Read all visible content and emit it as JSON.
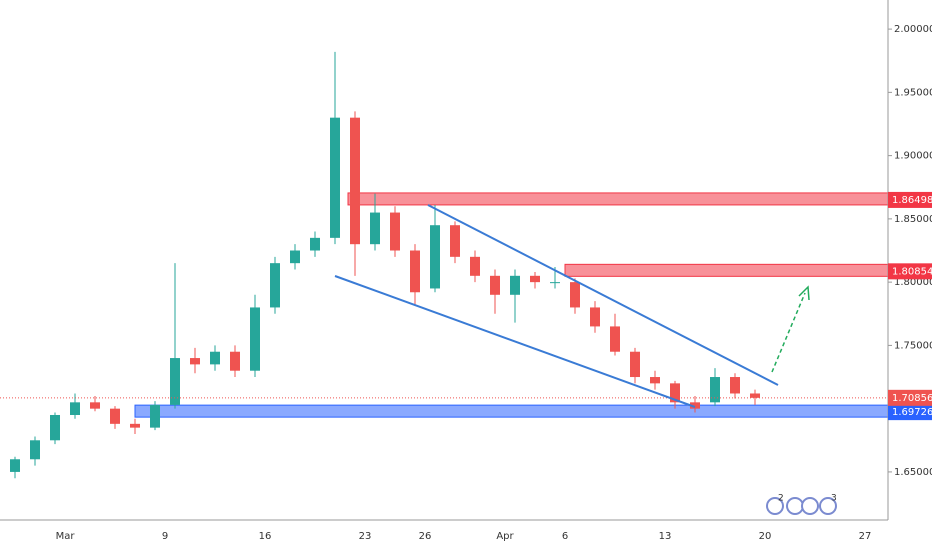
{
  "chart_data": {
    "type": "candlestick",
    "categories": [
      null,
      null,
      null,
      "Mar",
      null,
      null,
      null,
      null,
      "9",
      null,
      null,
      null,
      null,
      "16",
      null,
      null,
      null,
      null,
      "23",
      null,
      null,
      "26",
      null,
      null,
      null,
      "Apr",
      null,
      null,
      "6",
      null,
      null,
      null,
      null,
      "13",
      null,
      null,
      null,
      null,
      "20",
      null,
      null,
      null,
      null,
      "27"
    ],
    "open": [
      1.65,
      1.66,
      1.675,
      1.695,
      1.705,
      1.7,
      1.688,
      1.685,
      1.703,
      1.74,
      1.735,
      1.745,
      1.73,
      1.78,
      1.815,
      1.825,
      1.835,
      1.93,
      1.83,
      1.855,
      1.825,
      1.795,
      1.845,
      1.82,
      1.805,
      1.79,
      1.805,
      1.8,
      1.8,
      1.78,
      1.765,
      1.745,
      1.725,
      1.72,
      1.705,
      1.705,
      1.725,
      1.712,
      null,
      null,
      null,
      null,
      null,
      null
    ],
    "high": [
      1.662,
      1.678,
      1.697,
      1.712,
      1.71,
      1.702,
      1.692,
      1.706,
      1.815,
      1.748,
      1.75,
      1.75,
      1.79,
      1.82,
      1.83,
      1.84,
      1.982,
      1.935,
      1.87,
      1.86,
      1.83,
      1.861,
      1.848,
      1.825,
      1.81,
      1.81,
      1.808,
      1.812,
      1.803,
      1.785,
      1.775,
      1.748,
      1.73,
      1.722,
      1.71,
      1.732,
      1.728,
      1.715,
      null,
      null,
      null,
      null,
      null,
      null
    ],
    "low": [
      1.645,
      1.655,
      1.672,
      1.692,
      1.698,
      1.684,
      1.68,
      1.683,
      1.7,
      1.728,
      1.73,
      1.725,
      1.725,
      1.775,
      1.81,
      1.82,
      1.83,
      1.805,
      1.825,
      1.82,
      1.782,
      1.792,
      1.815,
      1.8,
      1.775,
      1.768,
      1.795,
      1.795,
      1.775,
      1.76,
      1.742,
      1.72,
      1.715,
      1.7,
      1.697,
      1.702,
      1.708,
      1.703,
      null,
      null,
      null,
      null,
      null,
      null
    ],
    "close": [
      1.66,
      1.675,
      1.695,
      1.705,
      1.7,
      1.688,
      1.685,
      1.703,
      1.74,
      1.735,
      1.745,
      1.73,
      1.78,
      1.815,
      1.825,
      1.835,
      1.93,
      1.83,
      1.855,
      1.825,
      1.792,
      1.845,
      1.82,
      1.805,
      1.79,
      1.805,
      1.8,
      1.8,
      1.78,
      1.765,
      1.745,
      1.725,
      1.72,
      1.705,
      1.7,
      1.725,
      1.712,
      1.70856,
      null,
      null,
      null,
      null,
      null,
      null
    ],
    "up_color": "#26a69a",
    "down_color": "#ef5350",
    "ylim": [
      1.612,
      2.023
    ],
    "yticks": [
      {
        "value": 1.65,
        "label": "1.65000"
      },
      {
        "value": 1.75,
        "label": "1.75000"
      },
      {
        "value": 1.8,
        "label": "1.80000"
      },
      {
        "value": 1.85,
        "label": "1.85000"
      },
      {
        "value": 1.9,
        "label": "1.90000"
      },
      {
        "value": 1.95,
        "label": "1.95000"
      },
      {
        "value": 2.0,
        "label": "2.00000"
      }
    ],
    "levels": [
      {
        "value": 1.86498,
        "color": "#f23645"
      },
      {
        "value": 1.80854,
        "color": "#f23645"
      },
      {
        "value": 1.69726,
        "color": "#2962ff"
      }
    ],
    "event_badges": [
      "2",
      "3"
    ]
  }
}
